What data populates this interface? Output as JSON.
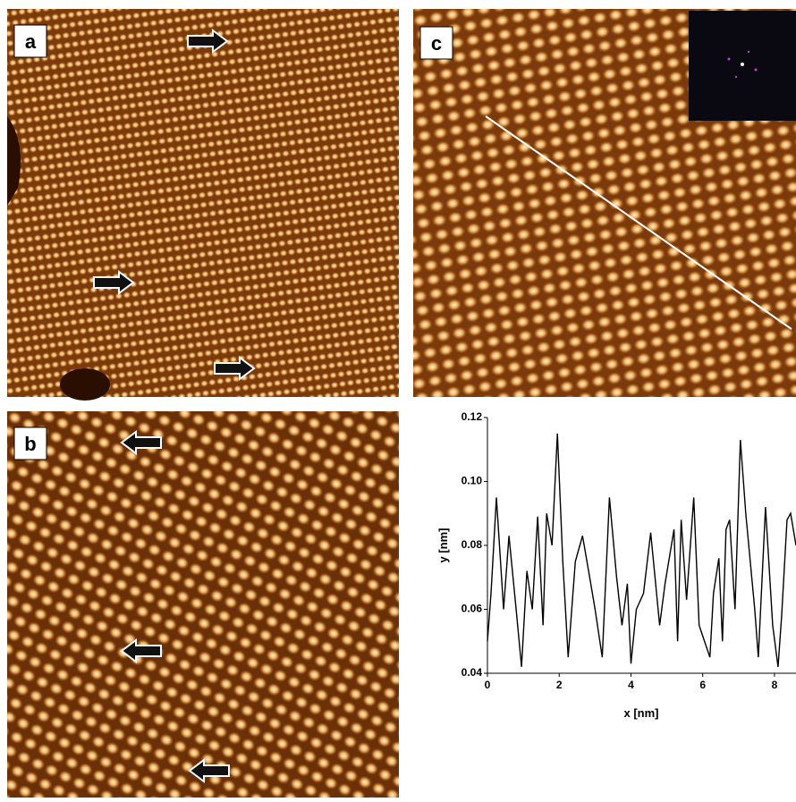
{
  "panels": [
    {
      "label": "a"
    },
    {
      "label": "b"
    },
    {
      "label": "c"
    }
  ],
  "chart_data": {
    "type": "line",
    "xlabel": "x [nm]",
    "ylabel": "y [nm]",
    "xlim": [
      0,
      8.6
    ],
    "xticks": [
      0,
      2,
      4,
      6,
      8
    ],
    "ylim": [
      0.04,
      0.12
    ],
    "yticks": [
      0.04,
      0.06,
      0.08,
      {
        "value": 0.1,
        "label": "0.10"
      },
      0.12
    ],
    "series": [
      {
        "color": "#000000",
        "x": [
          0,
          0.1,
          0.25,
          0.45,
          0.6,
          0.8,
          0.95,
          1.1,
          1.25,
          1.4,
          1.55,
          1.65,
          1.8,
          1.95,
          2.1,
          2.25,
          2.45,
          2.65,
          2.85,
          3.0,
          3.2,
          3.3,
          3.4,
          3.6,
          3.75,
          3.9,
          4.0,
          4.15,
          4.35,
          4.55,
          4.8,
          4.95,
          5.2,
          5.3,
          5.4,
          5.55,
          5.75,
          5.9,
          6.05,
          6.2,
          6.3,
          6.45,
          6.55,
          6.65,
          6.75,
          6.9,
          7.05,
          7.2,
          7.45,
          7.55,
          7.75,
          7.95,
          8.1,
          8.2,
          8.35,
          8.45,
          8.6
        ],
        "values": [
          0.05,
          0.065,
          0.095,
          0.06,
          0.083,
          0.06,
          0.042,
          0.072,
          0.06,
          0.089,
          0.055,
          0.09,
          0.08,
          0.115,
          0.075,
          0.045,
          0.075,
          0.083,
          0.07,
          0.06,
          0.045,
          0.07,
          0.095,
          0.07,
          0.055,
          0.068,
          0.043,
          0.06,
          0.065,
          0.084,
          0.055,
          0.068,
          0.085,
          0.05,
          0.088,
          0.063,
          0.095,
          0.055,
          0.05,
          0.045,
          0.065,
          0.076,
          0.05,
          0.085,
          0.088,
          0.06,
          0.113,
          0.09,
          0.06,
          0.045,
          0.092,
          0.055,
          0.042,
          0.058,
          0.088,
          0.09,
          0.08
        ]
      }
    ]
  }
}
